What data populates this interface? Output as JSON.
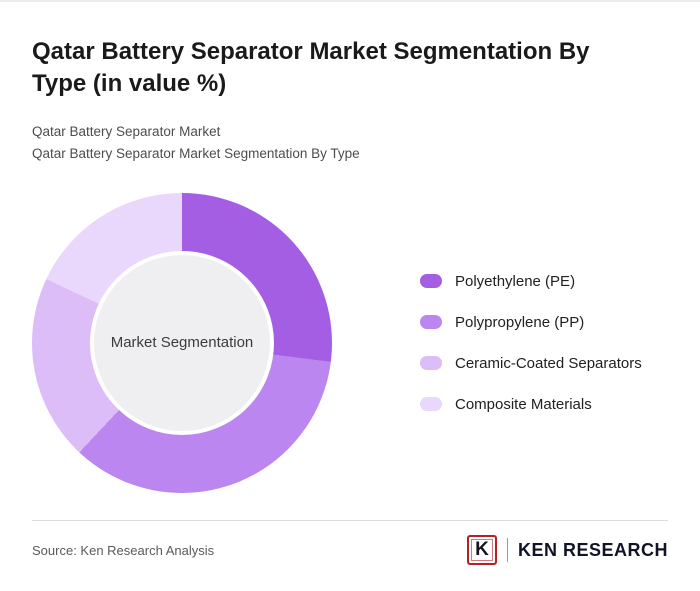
{
  "header": {
    "title": "Qatar Battery Separator Market Segmentation By Type (in value %)",
    "subtitle1": "Qatar Battery Separator Market",
    "subtitle2": "Qatar Battery Separator Market Segmentation By Type"
  },
  "chart_data": {
    "type": "pie",
    "variant": "donut",
    "title": "Qatar Battery Separator Market Segmentation By Type (in value %)",
    "center_label": "Market Segmentation",
    "categories": [
      "Polyethylene (PE)",
      "Polypropylene (PP)",
      "Ceramic-Coated Separators",
      "Composite Materials"
    ],
    "values": [
      27,
      35,
      20,
      18
    ],
    "colors": [
      "#a45ee3",
      "#bb86ef",
      "#dcbdf8",
      "#e9d7fc"
    ],
    "hole_color": "#efeff1",
    "legend_position": "right",
    "start_angle_deg": 0,
    "direction": "clockwise"
  },
  "footer": {
    "source": "Source: Ken Research Analysis",
    "logo_mark": "K",
    "logo_text": "KEN RESEARCH",
    "logo_accent_color": "#b42127"
  }
}
